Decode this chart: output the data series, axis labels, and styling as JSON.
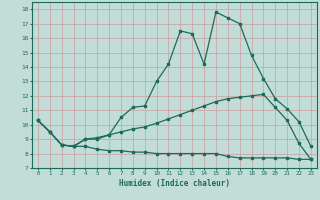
{
  "xlabel": "Humidex (Indice chaleur)",
  "xlim": [
    -0.5,
    23.5
  ],
  "ylim": [
    7,
    18.5
  ],
  "yticks": [
    7,
    8,
    9,
    10,
    11,
    12,
    13,
    14,
    15,
    16,
    17,
    18
  ],
  "xticks": [
    0,
    1,
    2,
    3,
    4,
    5,
    6,
    7,
    8,
    9,
    10,
    11,
    12,
    13,
    14,
    15,
    16,
    17,
    18,
    19,
    20,
    21,
    22,
    23
  ],
  "bg_color": "#c2ddd8",
  "grid_color": "#c8a8a8",
  "line_color": "#1a6b5a",
  "line1_x": [
    0,
    1,
    2,
    3,
    4,
    5,
    6,
    7,
    8,
    9,
    10,
    11,
    12,
    13,
    14,
    15,
    16,
    17,
    18,
    19,
    20,
    21,
    22,
    23
  ],
  "line1_y": [
    10.3,
    9.5,
    8.6,
    8.5,
    9.0,
    9.0,
    9.3,
    10.5,
    11.2,
    11.3,
    13.0,
    14.2,
    16.5,
    16.3,
    14.2,
    17.8,
    17.4,
    17.0,
    14.8,
    13.2,
    11.8,
    11.1,
    10.2,
    8.5
  ],
  "line2_x": [
    0,
    1,
    2,
    3,
    4,
    5,
    6,
    7,
    8,
    9,
    10,
    11,
    12,
    13,
    14,
    15,
    16,
    17,
    18,
    19,
    20,
    21,
    22,
    23
  ],
  "line2_y": [
    10.3,
    9.5,
    8.6,
    8.5,
    9.0,
    9.1,
    9.3,
    9.5,
    9.7,
    9.85,
    10.1,
    10.4,
    10.7,
    11.0,
    11.3,
    11.6,
    11.8,
    11.9,
    12.0,
    12.1,
    11.2,
    10.3,
    8.7,
    7.6
  ],
  "line3_x": [
    0,
    1,
    2,
    3,
    4,
    5,
    6,
    7,
    8,
    9,
    10,
    11,
    12,
    13,
    14,
    15,
    16,
    17,
    18,
    19,
    20,
    21,
    22,
    23
  ],
  "line3_y": [
    10.3,
    9.5,
    8.6,
    8.5,
    8.5,
    8.3,
    8.2,
    8.2,
    8.1,
    8.1,
    8.0,
    8.0,
    8.0,
    8.0,
    8.0,
    8.0,
    7.8,
    7.7,
    7.7,
    7.7,
    7.7,
    7.7,
    7.6,
    7.6
  ]
}
